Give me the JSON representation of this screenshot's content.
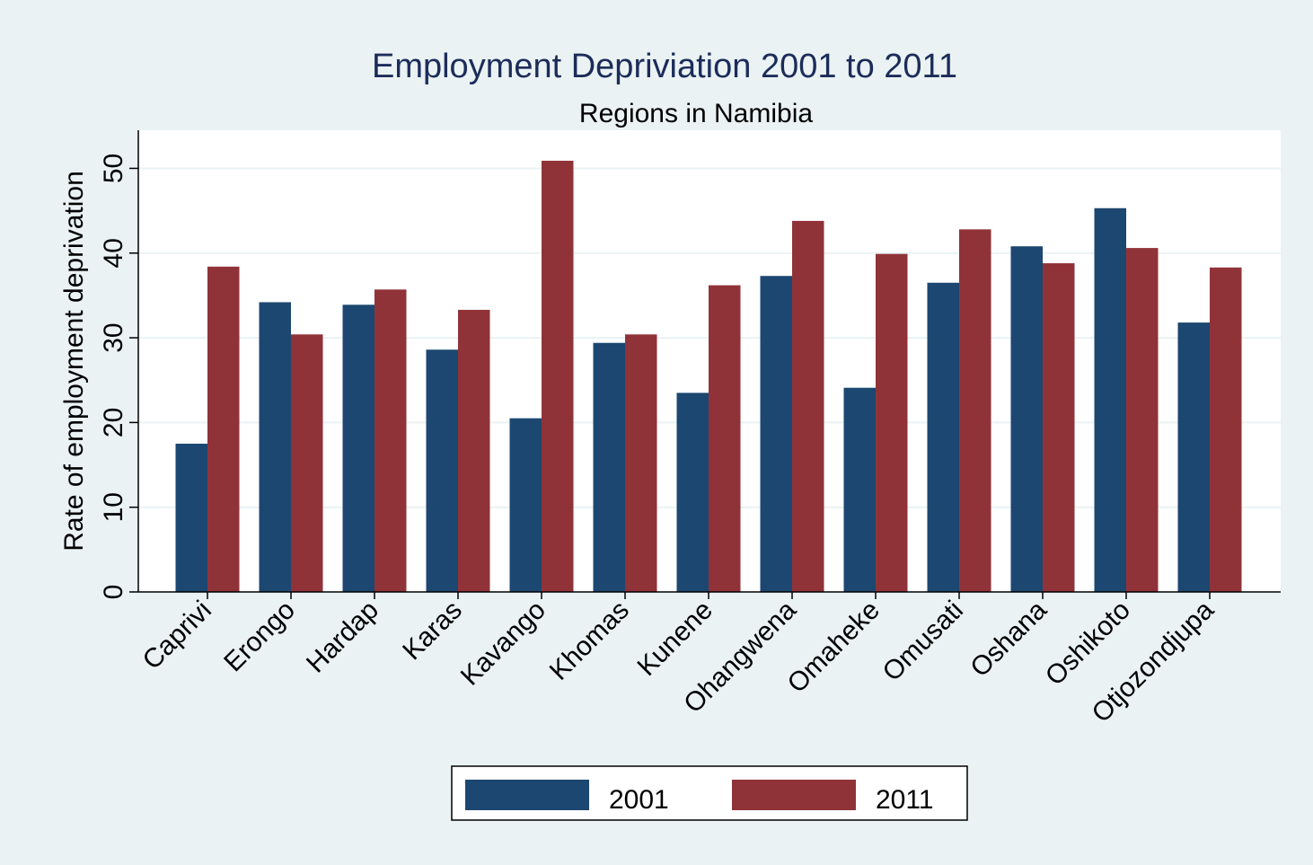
{
  "chart_data": {
    "type": "bar",
    "title": "Employment Depriviation 2001 to 2011",
    "subtitle": "Regions in Namibia",
    "xlabel": "",
    "ylabel": "Rate of employment deprivation",
    "ylim": [
      0,
      54.5
    ],
    "yticks": [
      0,
      10,
      20,
      30,
      40,
      50
    ],
    "grid": true,
    "legend_position": "bottom",
    "categories": [
      "Caprivi",
      "Erongo",
      "Hardap",
      "Karas",
      "Kavango",
      "Khomas",
      "Kunene",
      "Ohangwena",
      "Omaheke",
      "Omusati",
      "Oshana",
      "Oshikoto",
      "Otjozondjupa"
    ],
    "series": [
      {
        "name": "2001",
        "color": "#1c4770",
        "values": [
          17.5,
          34.2,
          33.9,
          28.6,
          20.5,
          29.4,
          23.5,
          37.3,
          24.1,
          36.5,
          40.8,
          45.3,
          31.8
        ]
      },
      {
        "name": "2011",
        "color": "#903339",
        "values": [
          38.4,
          30.4,
          35.7,
          33.3,
          50.9,
          30.4,
          36.2,
          43.8,
          39.9,
          42.8,
          38.8,
          40.6,
          38.3
        ]
      }
    ]
  }
}
